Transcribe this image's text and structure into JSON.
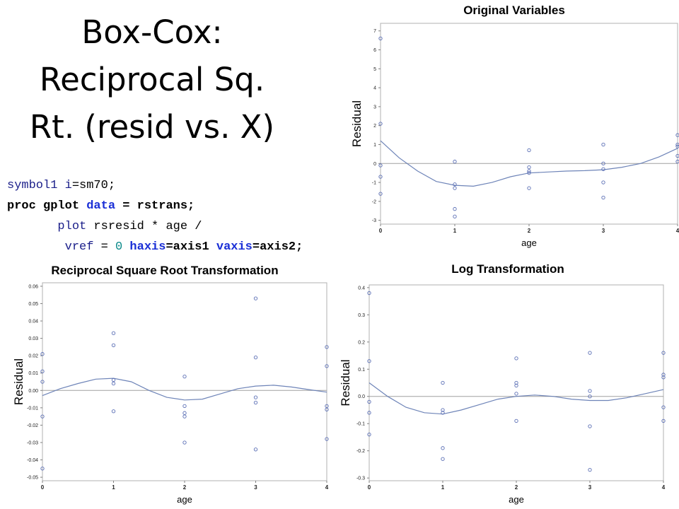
{
  "slide": {
    "title_lines": [
      "Box-Cox:",
      "Reciprocal Sq.",
      "Rt. (resid vs. X)"
    ]
  },
  "code": {
    "lines": [
      [
        {
          "t": "symbol1 ",
          "c": "navy"
        },
        {
          "t": "i",
          "c": "navy"
        },
        {
          "t": "=sm70;",
          "c": "black"
        }
      ],
      [
        {
          "t": "proc gplot ",
          "c": "black",
          "b": true
        },
        {
          "t": "data",
          "c": "blue",
          "b": true
        },
        {
          "t": " = rstrans;",
          "c": "black",
          "b": true
        }
      ],
      [
        {
          "t": "       plot ",
          "c": "navy"
        },
        {
          "t": "rsresid * age /",
          "c": "black"
        }
      ],
      [
        {
          "t": "        vref ",
          "c": "navy"
        },
        {
          "t": "= ",
          "c": "black"
        },
        {
          "t": "0",
          "c": "teal"
        },
        {
          "t": " haxis",
          "c": "blue",
          "b": true
        },
        {
          "t": "=axis1 ",
          "c": "black",
          "b": true
        },
        {
          "t": "vaxis",
          "c": "blue",
          "b": true
        },
        {
          "t": "=axis2;",
          "c": "black",
          "b": true
        }
      ]
    ]
  },
  "chart_data": [
    {
      "type": "scatter",
      "title": "Original Variables",
      "xlabel": "age",
      "ylabel": "Residual",
      "xlim": [
        0,
        4
      ],
      "ylim": [
        -3.2,
        7.4
      ],
      "x_ticks": [
        0,
        1,
        2,
        3,
        4
      ],
      "y_ticks": [
        -3,
        -2,
        -1,
        0,
        1,
        2,
        3,
        4,
        5,
        6,
        7
      ],
      "reference_line": 0,
      "points": [
        {
          "x": 0,
          "y": 6.6
        },
        {
          "x": 0,
          "y": 2.1
        },
        {
          "x": 0,
          "y": -0.1
        },
        {
          "x": 0,
          "y": -0.7
        },
        {
          "x": 0,
          "y": -1.6
        },
        {
          "x": 1,
          "y": 0.1
        },
        {
          "x": 1,
          "y": -1.1
        },
        {
          "x": 1,
          "y": -1.3
        },
        {
          "x": 1,
          "y": -2.4
        },
        {
          "x": 1,
          "y": -2.8
        },
        {
          "x": 2,
          "y": 0.7
        },
        {
          "x": 2,
          "y": -0.2
        },
        {
          "x": 2,
          "y": -0.4
        },
        {
          "x": 2,
          "y": -0.5
        },
        {
          "x": 2,
          "y": -1.3
        },
        {
          "x": 3,
          "y": 1.0
        },
        {
          "x": 3,
          "y": 0.0
        },
        {
          "x": 3,
          "y": -0.3
        },
        {
          "x": 3,
          "y": -1.0
        },
        {
          "x": 3,
          "y": -1.8
        },
        {
          "x": 4,
          "y": 1.5
        },
        {
          "x": 4,
          "y": 1.0
        },
        {
          "x": 4,
          "y": 0.9
        },
        {
          "x": 4,
          "y": 0.4
        },
        {
          "x": 4,
          "y": 0.1
        }
      ],
      "smooth": [
        {
          "x": 0,
          "y": 1.2
        },
        {
          "x": 0.25,
          "y": 0.3
        },
        {
          "x": 0.5,
          "y": -0.4
        },
        {
          "x": 0.75,
          "y": -0.95
        },
        {
          "x": 1.0,
          "y": -1.15
        },
        {
          "x": 1.25,
          "y": -1.2
        },
        {
          "x": 1.5,
          "y": -1.0
        },
        {
          "x": 1.75,
          "y": -0.7
        },
        {
          "x": 2.0,
          "y": -0.5
        },
        {
          "x": 2.25,
          "y": -0.45
        },
        {
          "x": 2.5,
          "y": -0.4
        },
        {
          "x": 2.75,
          "y": -0.38
        },
        {
          "x": 3.0,
          "y": -0.33
        },
        {
          "x": 3.25,
          "y": -0.2
        },
        {
          "x": 3.5,
          "y": 0.0
        },
        {
          "x": 3.75,
          "y": 0.35
        },
        {
          "x": 4.0,
          "y": 0.8
        }
      ]
    },
    {
      "type": "scatter",
      "title": "Reciprocal Square Root Transformation",
      "xlabel": "age",
      "ylabel": "Residual",
      "xlim": [
        0,
        4
      ],
      "ylim": [
        -0.052,
        0.062
      ],
      "x_ticks": [
        0,
        1,
        2,
        3,
        4
      ],
      "y_ticks": [
        "-0.05",
        "-0.04",
        "-0.03",
        "-0.02",
        "-0.01",
        "0.00",
        "0.01",
        "0.02",
        "0.03",
        "0.04",
        "0.05",
        "0.06"
      ],
      "reference_line": 0,
      "points": [
        {
          "x": 0,
          "y": 0.021
        },
        {
          "x": 0,
          "y": 0.011
        },
        {
          "x": 0,
          "y": 0.005
        },
        {
          "x": 0,
          "y": -0.015
        },
        {
          "x": 0,
          "y": -0.045
        },
        {
          "x": 1,
          "y": 0.033
        },
        {
          "x": 1,
          "y": 0.026
        },
        {
          "x": 1,
          "y": 0.006
        },
        {
          "x": 1,
          "y": 0.004
        },
        {
          "x": 1,
          "y": -0.012
        },
        {
          "x": 2,
          "y": 0.008
        },
        {
          "x": 2,
          "y": -0.009
        },
        {
          "x": 2,
          "y": -0.013
        },
        {
          "x": 2,
          "y": -0.015
        },
        {
          "x": 2,
          "y": -0.03
        },
        {
          "x": 3,
          "y": 0.053
        },
        {
          "x": 3,
          "y": 0.019
        },
        {
          "x": 3,
          "y": -0.004
        },
        {
          "x": 3,
          "y": -0.007
        },
        {
          "x": 3,
          "y": -0.034
        },
        {
          "x": 4,
          "y": 0.025
        },
        {
          "x": 4,
          "y": 0.014
        },
        {
          "x": 4,
          "y": -0.009
        },
        {
          "x": 4,
          "y": -0.011
        },
        {
          "x": 4,
          "y": -0.028
        }
      ],
      "smooth": [
        {
          "x": 0,
          "y": -0.003
        },
        {
          "x": 0.25,
          "y": 0.001
        },
        {
          "x": 0.5,
          "y": 0.004
        },
        {
          "x": 0.75,
          "y": 0.0065
        },
        {
          "x": 1.0,
          "y": 0.007
        },
        {
          "x": 1.25,
          "y": 0.005
        },
        {
          "x": 1.5,
          "y": 0.0
        },
        {
          "x": 1.75,
          "y": -0.004
        },
        {
          "x": 2.0,
          "y": -0.0055
        },
        {
          "x": 2.25,
          "y": -0.005
        },
        {
          "x": 2.5,
          "y": -0.002
        },
        {
          "x": 2.75,
          "y": 0.001
        },
        {
          "x": 3.0,
          "y": 0.0025
        },
        {
          "x": 3.25,
          "y": 0.003
        },
        {
          "x": 3.5,
          "y": 0.002
        },
        {
          "x": 3.75,
          "y": 0.0005
        },
        {
          "x": 4.0,
          "y": -0.001
        }
      ]
    },
    {
      "type": "scatter",
      "title": "Log Transformation",
      "xlabel": "age",
      "ylabel": "Residual",
      "xlim": [
        0,
        4
      ],
      "ylim": [
        -0.31,
        0.41
      ],
      "x_ticks": [
        0,
        1,
        2,
        3,
        4
      ],
      "y_ticks": [
        "-0.3",
        "-0.2",
        "-0.1",
        "0.0",
        "0.1",
        "0.2",
        "0.3",
        "0.4"
      ],
      "reference_line": 0,
      "points": [
        {
          "x": 0,
          "y": 0.38
        },
        {
          "x": 0,
          "y": 0.13
        },
        {
          "x": 0,
          "y": -0.02
        },
        {
          "x": 0,
          "y": -0.06
        },
        {
          "x": 0,
          "y": -0.14
        },
        {
          "x": 1,
          "y": 0.05
        },
        {
          "x": 1,
          "y": -0.05
        },
        {
          "x": 1,
          "y": -0.06
        },
        {
          "x": 1,
          "y": -0.19
        },
        {
          "x": 1,
          "y": -0.23
        },
        {
          "x": 2,
          "y": 0.14
        },
        {
          "x": 2,
          "y": 0.05
        },
        {
          "x": 2,
          "y": 0.04
        },
        {
          "x": 2,
          "y": 0.01
        },
        {
          "x": 2,
          "y": -0.09
        },
        {
          "x": 3,
          "y": 0.16
        },
        {
          "x": 3,
          "y": 0.02
        },
        {
          "x": 3,
          "y": 0.0
        },
        {
          "x": 3,
          "y": -0.11
        },
        {
          "x": 3,
          "y": -0.27
        },
        {
          "x": 4,
          "y": 0.16
        },
        {
          "x": 4,
          "y": 0.08
        },
        {
          "x": 4,
          "y": 0.07
        },
        {
          "x": 4,
          "y": -0.04
        },
        {
          "x": 4,
          "y": -0.09
        }
      ],
      "smooth": [
        {
          "x": 0,
          "y": 0.05
        },
        {
          "x": 0.25,
          "y": 0.0
        },
        {
          "x": 0.5,
          "y": -0.04
        },
        {
          "x": 0.75,
          "y": -0.06
        },
        {
          "x": 1.0,
          "y": -0.065
        },
        {
          "x": 1.25,
          "y": -0.05
        },
        {
          "x": 1.5,
          "y": -0.03
        },
        {
          "x": 1.75,
          "y": -0.01
        },
        {
          "x": 2.0,
          "y": 0.0
        },
        {
          "x": 2.25,
          "y": 0.005
        },
        {
          "x": 2.5,
          "y": 0.0
        },
        {
          "x": 2.75,
          "y": -0.01
        },
        {
          "x": 3.0,
          "y": -0.015
        },
        {
          "x": 3.25,
          "y": -0.015
        },
        {
          "x": 3.5,
          "y": -0.005
        },
        {
          "x": 3.75,
          "y": 0.01
        },
        {
          "x": 4.0,
          "y": 0.025
        }
      ]
    }
  ]
}
